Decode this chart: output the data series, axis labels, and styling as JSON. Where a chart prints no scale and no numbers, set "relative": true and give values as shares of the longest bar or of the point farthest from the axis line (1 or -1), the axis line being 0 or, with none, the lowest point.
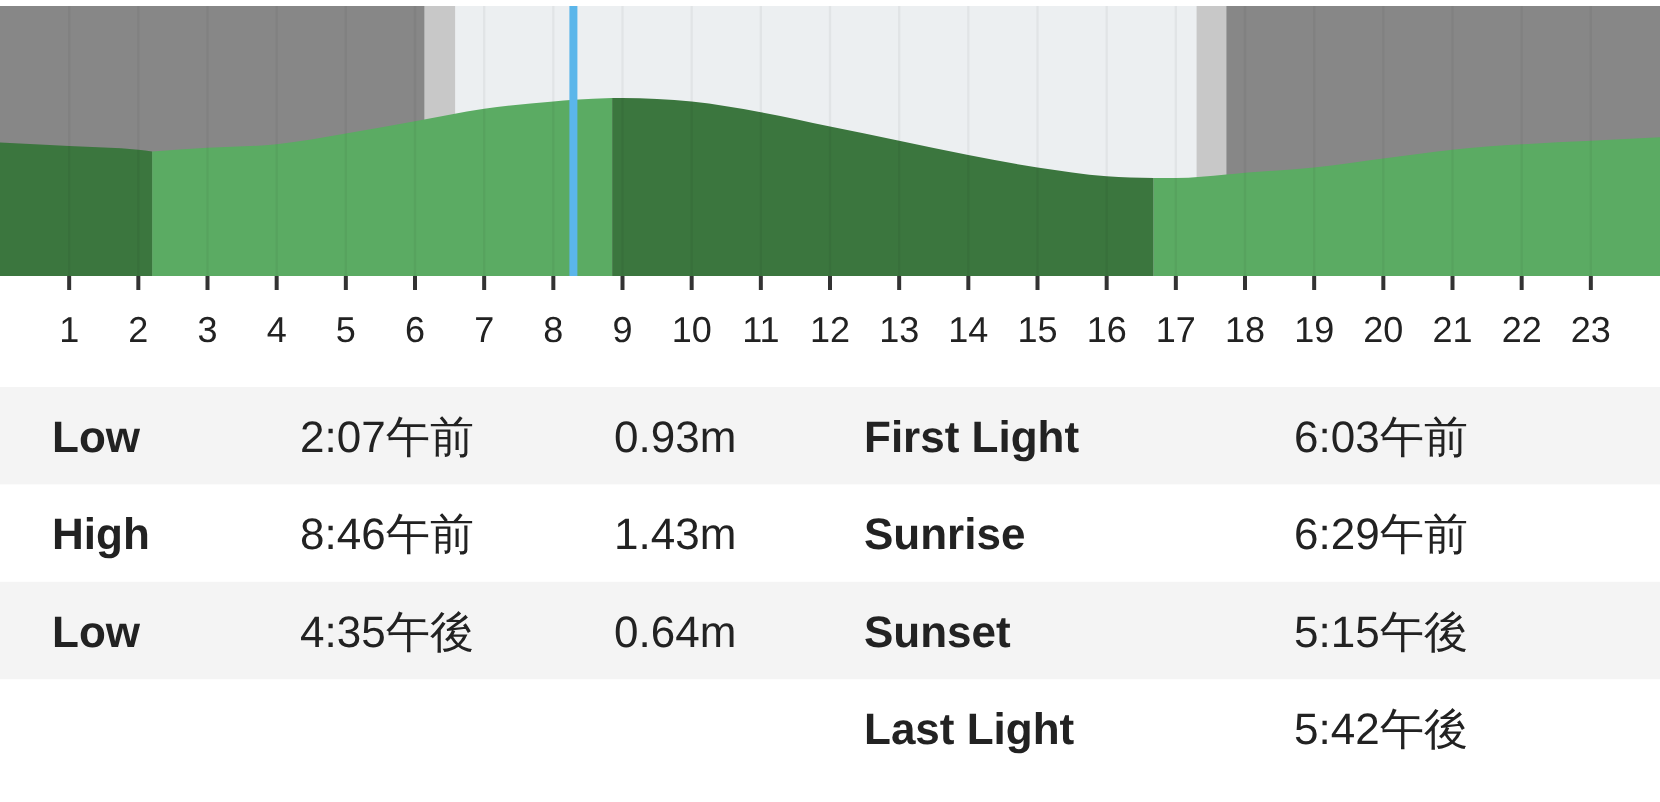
{
  "chart_data": [
    {
      "type": "area",
      "relative": true,
      "xlim": [
        0,
        24
      ],
      "xticks": [
        1,
        2,
        3,
        4,
        5,
        6,
        7,
        8,
        9,
        10,
        11,
        12,
        13,
        14,
        15,
        16,
        17,
        18,
        19,
        20,
        21,
        22,
        23
      ],
      "grid": "x",
      "bands": [
        {
          "axis": "x",
          "from": 0,
          "to": 6.14,
          "color": "#878787"
        },
        {
          "axis": "x",
          "from": 6.14,
          "to": 6.58,
          "color": "#c8c8c8"
        },
        {
          "axis": "x",
          "from": 17.3,
          "to": 17.73,
          "color": "#c8c8c8"
        },
        {
          "axis": "x",
          "from": 17.73,
          "to": 24,
          "color": "#878787"
        }
      ],
      "ref_lines": [
        {
          "axis": "x",
          "value": 8.29,
          "color": "#5bb6ea"
        }
      ],
      "series": [
        {
          "color": "#3b763e",
          "x": [
            0,
            1,
            2,
            2.2
          ],
          "values": [
            0.75,
            0.73,
            0.71,
            0.7
          ]
        },
        {
          "color": "#5bab63",
          "x": [
            2.2,
            3,
            4,
            5,
            6,
            7,
            8,
            8.3,
            8.85
          ],
          "values": [
            0.7,
            0.72,
            0.74,
            0.8,
            0.87,
            0.94,
            0.98,
            0.99,
            1
          ]
        },
        {
          "color": "#3b763e",
          "x": [
            8.85,
            9,
            10,
            11,
            12,
            13,
            14,
            15,
            16,
            16.68
          ],
          "values": [
            1,
            1,
            0.98,
            0.92,
            0.84,
            0.76,
            0.68,
            0.61,
            0.56,
            0.55
          ]
        },
        {
          "color": "#5bab63",
          "x": [
            16.68,
            17,
            17.73,
            18,
            19,
            20,
            21,
            22,
            23,
            24
          ],
          "values": [
            0.55,
            0.55,
            0.57,
            0.58,
            0.61,
            0.66,
            0.71,
            0.74,
            0.76,
            0.78
          ]
        }
      ]
    },
    {
      "type": "other",
      "annotations": [
        "Low",
        "2:07午前",
        "0.93m",
        "High",
        "8:46午前",
        "1.43m",
        "Low",
        "4:35午後",
        "0.64m"
      ]
    },
    {
      "type": "other",
      "annotations": [
        "First Light",
        "6:03午前",
        "Sunrise",
        "6:29午前",
        "Sunset",
        "5:15午後",
        "Last Light",
        "5:42午後"
      ]
    }
  ]
}
